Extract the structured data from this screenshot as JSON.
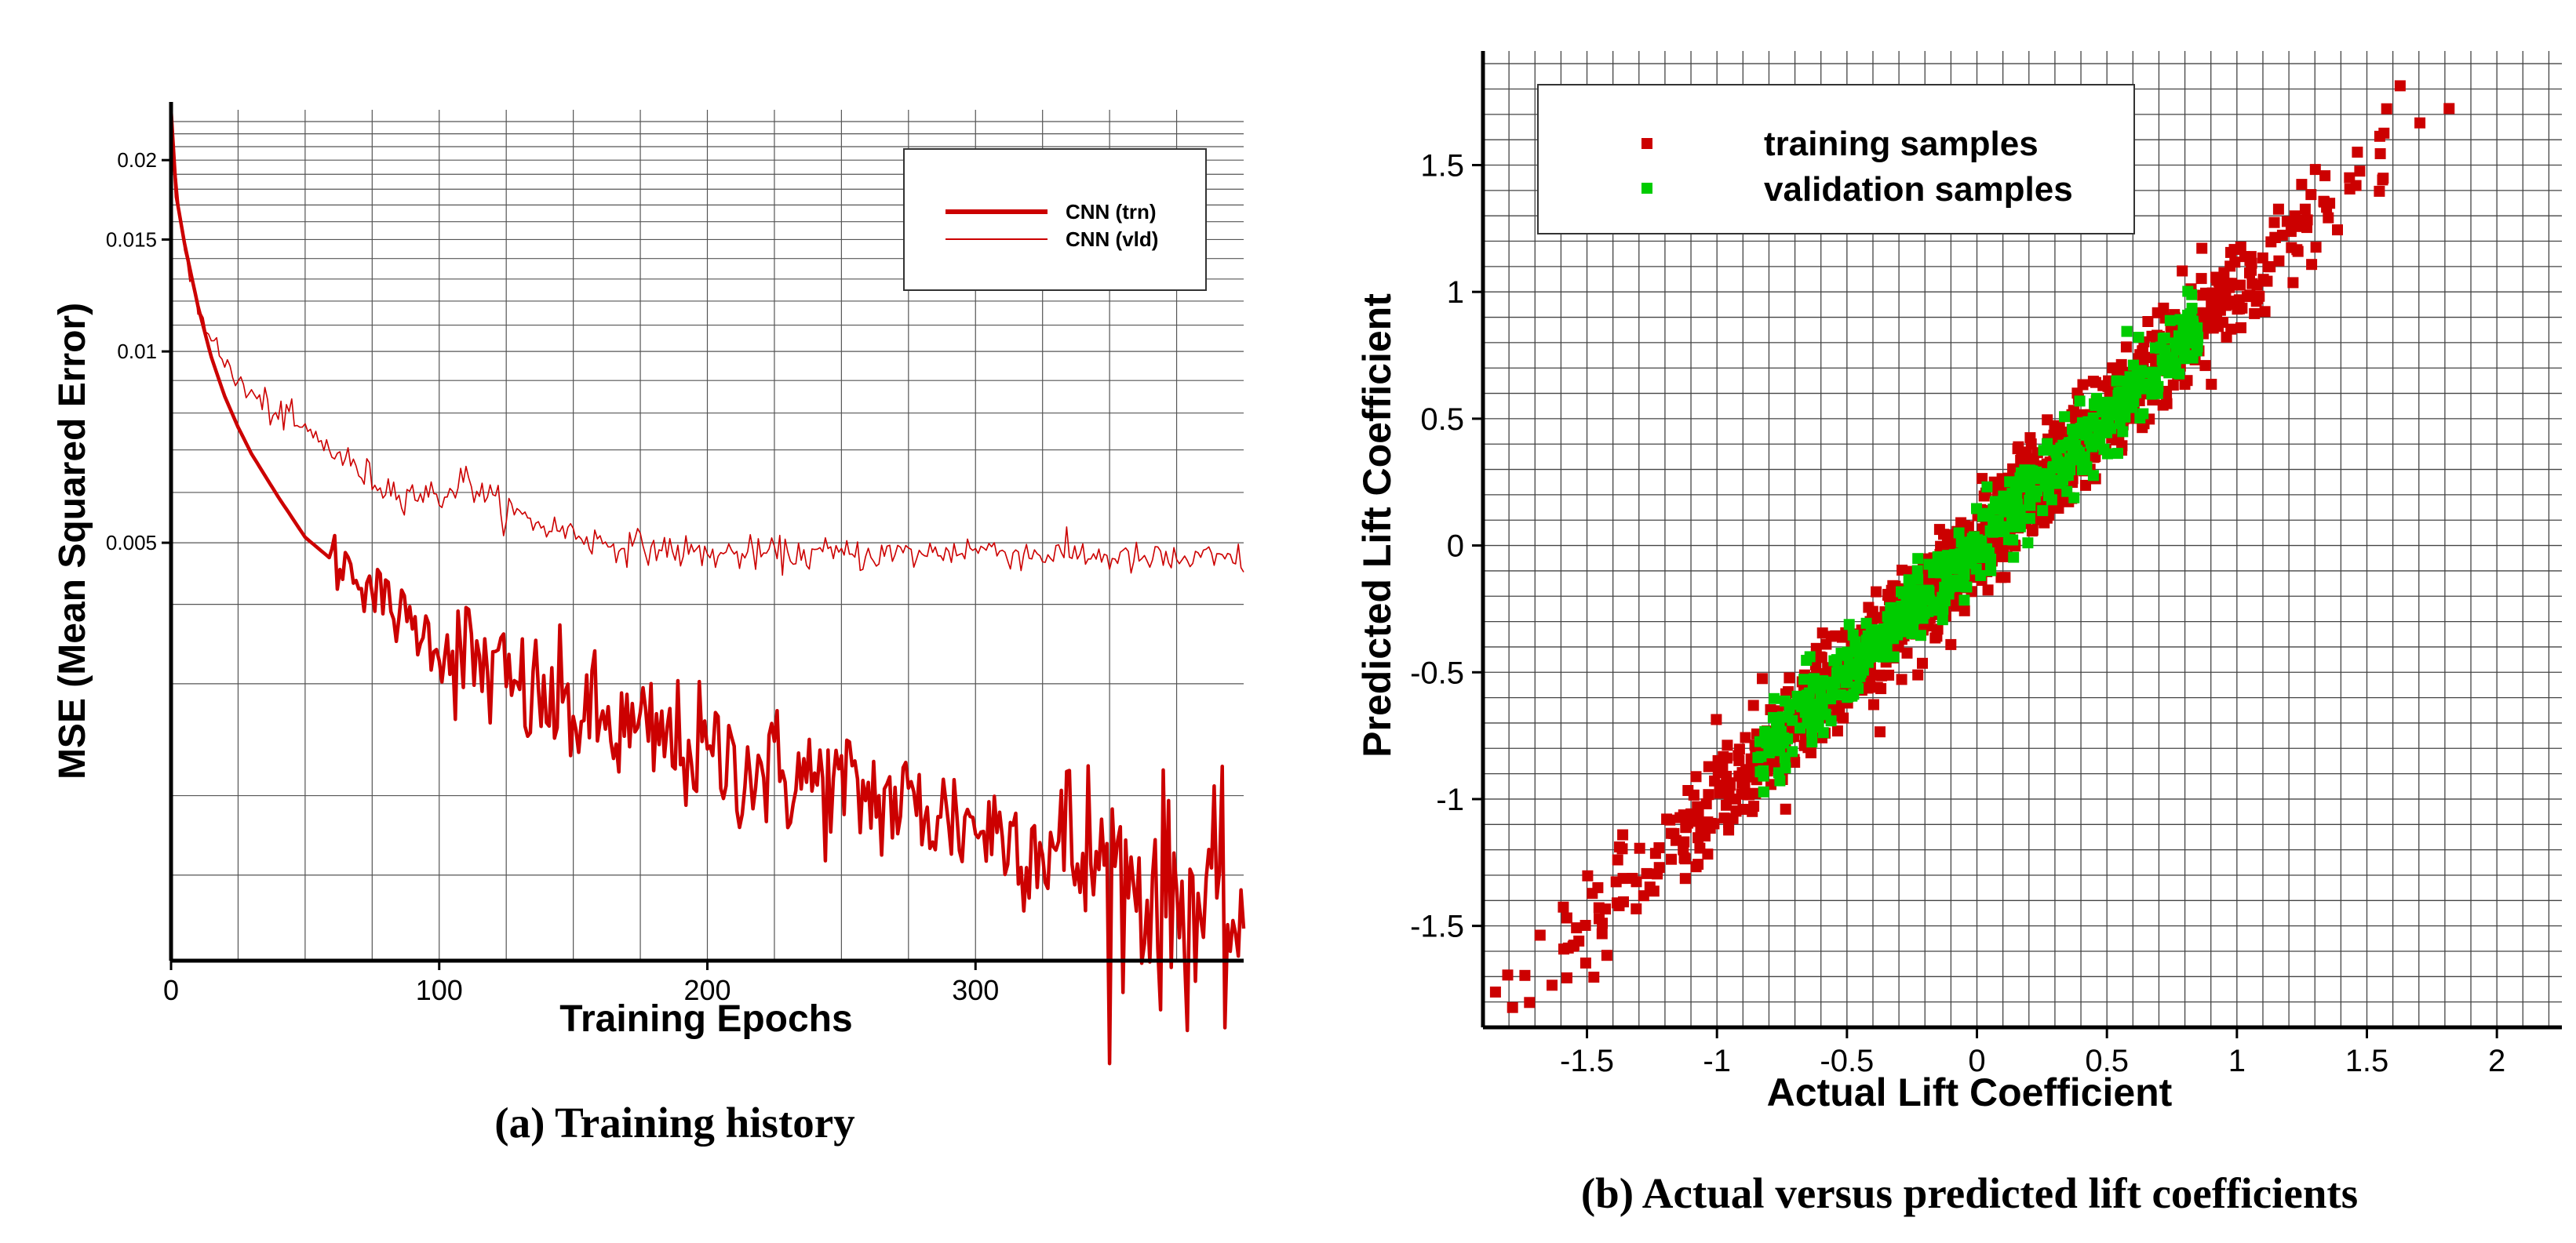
{
  "chart_data": [
    {
      "type": "line",
      "caption": "(a) Training history",
      "xlabel": "Training Epochs",
      "ylabel": "MSE (Mean Squared Error)",
      "xlim": [
        0,
        400
      ],
      "ylim": [
        0.0011,
        0.024
      ],
      "y_scale": "log",
      "grid": true,
      "legend_position": "top-right",
      "x_ticks": [
        0,
        100,
        200,
        300
      ],
      "y_ticks": [
        0.005,
        0.01,
        0.015,
        0.02
      ],
      "y_tick_labels": [
        "0.005",
        "0.01",
        "0.015",
        "0.02"
      ],
      "series": [
        {
          "name": "CNN (trn)",
          "style": "thick",
          "color": "#cc0000",
          "x": [
            0,
            2,
            5,
            10,
            15,
            20,
            25,
            30,
            40,
            50,
            60,
            70,
            80,
            90,
            100,
            110,
            120,
            130,
            140,
            150,
            160,
            170,
            180,
            190,
            200,
            210,
            220,
            230,
            240,
            250,
            260,
            270,
            280,
            290,
            300,
            310,
            320,
            330,
            340,
            350,
            360,
            370,
            380,
            390,
            400
          ],
          "y": [
            0.024,
            0.0175,
            0.0148,
            0.0118,
            0.0098,
            0.0085,
            0.0076,
            0.0069,
            0.0059,
            0.0051,
            0.0047,
            0.0045,
            0.004,
            0.0037,
            0.0035,
            0.0033,
            0.0031,
            0.0029,
            0.0028,
            0.0027,
            0.0026,
            0.0025,
            0.00245,
            0.0024,
            0.0023,
            0.00225,
            0.0022,
            0.00215,
            0.0021,
            0.00205,
            0.002,
            0.00195,
            0.0019,
            0.00185,
            0.0018,
            0.00175,
            0.0017,
            0.00165,
            0.0016,
            0.00152,
            0.00145,
            0.0014,
            0.00135,
            0.0013,
            0.00125
          ]
        },
        {
          "name": "CNN (vld)",
          "style": "thin",
          "color": "#cc0000",
          "x": [
            0,
            5,
            10,
            20,
            30,
            40,
            50,
            60,
            70,
            80,
            90,
            100,
            110,
            120,
            130,
            140,
            150,
            160,
            180,
            200,
            220,
            240,
            260,
            280,
            300,
            320,
            340,
            360,
            380,
            400
          ],
          "y": [
            0.022,
            0.0145,
            0.0118,
            0.0095,
            0.0085,
            0.008,
            0.0075,
            0.007,
            0.0065,
            0.0061,
            0.006,
            0.0059,
            0.0063,
            0.0058,
            0.0055,
            0.0053,
            0.0052,
            0.005,
            0.0049,
            0.0048,
            0.0048,
            0.0048,
            0.0048,
            0.0048,
            0.0049,
            0.0048,
            0.0048,
            0.0047,
            0.0047,
            0.0047
          ]
        }
      ]
    },
    {
      "type": "scatter",
      "caption": "(b) Actual versus predicted lift coefficients",
      "xlabel": "Actual Lift Coefficient",
      "ylabel": "Predicted Lift Coefficient",
      "xlim": [
        -1.9,
        2.25
      ],
      "ylim": [
        -1.9,
        1.95
      ],
      "x_ticks": [
        -1.5,
        -1,
        -0.5,
        0,
        0.5,
        1,
        1.5,
        2
      ],
      "x_tick_labels": [
        "-1.5",
        "-1",
        "-0.5",
        "0",
        "0.5",
        "1",
        "1.5",
        "2"
      ],
      "y_ticks": [
        -1.5,
        -1,
        -0.5,
        0,
        0.5,
        1,
        1.5
      ],
      "y_tick_labels": [
        "-1.5",
        "-1",
        "-0.5",
        "0",
        "0.5",
        "1",
        "1.5"
      ],
      "grid": true,
      "legend_position": "top-left",
      "series": [
        {
          "name": "training samples",
          "color": "#cc0000",
          "x_range": [
            -1.9,
            1.9
          ],
          "trend": "y = x",
          "spread": 0.09
        },
        {
          "name": "validation samples",
          "color": "#00cc00",
          "x_range": [
            -0.85,
            0.85
          ],
          "trend": "y = x",
          "spread": 0.07
        }
      ]
    }
  ]
}
